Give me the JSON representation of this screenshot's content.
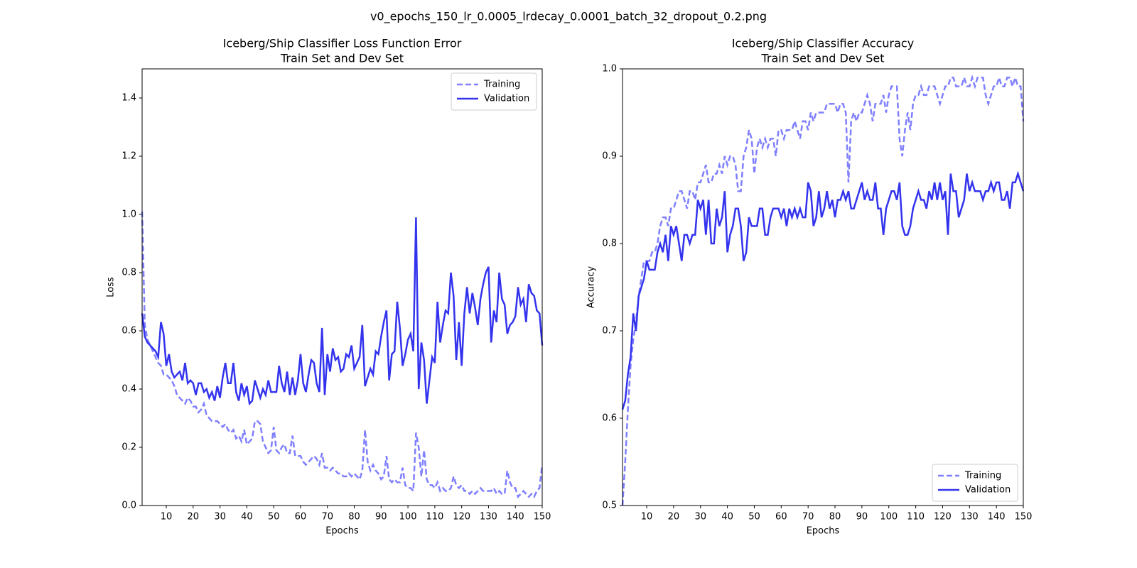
{
  "title": "v0_epochs_150_lr_0.0005_lrdecay_0.0001_batch_32_dropout_0.2.png",
  "chart_data": [
    {
      "type": "line",
      "title": [
        "Iceberg/Ship Classifier Loss Function Error",
        "Train Set and Dev Set"
      ],
      "xlabel": "Epochs",
      "ylabel": "Loss",
      "legend": "upper right",
      "xlim": [
        1,
        150
      ],
      "xticks": [
        10,
        20,
        30,
        40,
        50,
        60,
        70,
        80,
        90,
        100,
        110,
        120,
        130,
        140,
        150
      ],
      "ylim": [
        0,
        1.5
      ],
      "yticks": [
        {
          "value": 0,
          "label": "0.0"
        },
        0.2,
        0.4,
        0.6,
        0.8,
        {
          "value": 1,
          "label": "1.0"
        },
        1.2,
        1.4
      ],
      "x": [
        1,
        2,
        3,
        4,
        5,
        6,
        7,
        8,
        9,
        10,
        11,
        12,
        13,
        14,
        15,
        16,
        17,
        18,
        19,
        20,
        21,
        22,
        23,
        24,
        25,
        26,
        27,
        28,
        29,
        30,
        31,
        32,
        33,
        34,
        35,
        36,
        37,
        38,
        39,
        40,
        41,
        42,
        43,
        44,
        45,
        46,
        47,
        48,
        49,
        50,
        51,
        52,
        53,
        54,
        55,
        56,
        57,
        58,
        59,
        60,
        61,
        62,
        63,
        64,
        65,
        66,
        67,
        68,
        69,
        70,
        71,
        72,
        73,
        74,
        75,
        76,
        77,
        78,
        79,
        80,
        81,
        82,
        83,
        84,
        85,
        86,
        87,
        88,
        89,
        90,
        91,
        92,
        93,
        94,
        95,
        96,
        97,
        98,
        99,
        100,
        101,
        102,
        103,
        104,
        105,
        106,
        107,
        108,
        109,
        110,
        111,
        112,
        113,
        114,
        115,
        116,
        117,
        118,
        119,
        120,
        121,
        122,
        123,
        124,
        125,
        126,
        127,
        128,
        129,
        130,
        131,
        132,
        133,
        134,
        135,
        136,
        137,
        138,
        139,
        140,
        141,
        142,
        143,
        144,
        145,
        146,
        147,
        148,
        149,
        150
      ],
      "series": [
        {
          "name": "Training",
          "color": "#7f7fff",
          "style": "dashed",
          "values": [
            1.01,
            0.62,
            0.57,
            0.55,
            0.53,
            0.51,
            0.49,
            0.48,
            0.45,
            0.45,
            0.44,
            0.43,
            0.41,
            0.38,
            0.37,
            0.36,
            0.35,
            0.37,
            0.36,
            0.34,
            0.34,
            0.32,
            0.33,
            0.35,
            0.31,
            0.3,
            0.29,
            0.29,
            0.29,
            0.28,
            0.27,
            0.28,
            0.26,
            0.25,
            0.26,
            0.23,
            0.24,
            0.22,
            0.26,
            0.21,
            0.22,
            0.23,
            0.29,
            0.29,
            0.28,
            0.22,
            0.2,
            0.18,
            0.19,
            0.27,
            0.19,
            0.18,
            0.2,
            0.21,
            0.18,
            0.18,
            0.24,
            0.17,
            0.17,
            0.17,
            0.15,
            0.14,
            0.15,
            0.16,
            0.17,
            0.16,
            0.14,
            0.18,
            0.13,
            0.13,
            0.12,
            0.13,
            0.12,
            0.11,
            0.11,
            0.1,
            0.1,
            0.11,
            0.1,
            0.11,
            0.1,
            0.09,
            0.12,
            0.26,
            0.15,
            0.12,
            0.14,
            0.12,
            0.11,
            0.09,
            0.1,
            0.17,
            0.09,
            0.08,
            0.09,
            0.08,
            0.08,
            0.13,
            0.07,
            0.06,
            0.06,
            0.05,
            0.25,
            0.2,
            0.1,
            0.19,
            0.09,
            0.07,
            0.07,
            0.06,
            0.08,
            0.05,
            0.06,
            0.05,
            0.05,
            0.06,
            0.1,
            0.07,
            0.06,
            0.07,
            0.05,
            0.05,
            0.04,
            0.05,
            0.04,
            0.05,
            0.06,
            0.05,
            0.05,
            0.05,
            0.05,
            0.06,
            0.04,
            0.05,
            0.04,
            0.04,
            0.12,
            0.08,
            0.06,
            0.06,
            0.03,
            0.04,
            0.05,
            0.04,
            0.03,
            0.04,
            0.03,
            0.05,
            0.06,
            0.14
          ]
        },
        {
          "name": "Validation",
          "color": "#3333ee",
          "style": "solid",
          "values": [
            0.66,
            0.58,
            0.56,
            0.55,
            0.54,
            0.53,
            0.51,
            0.63,
            0.59,
            0.48,
            0.52,
            0.46,
            0.44,
            0.45,
            0.46,
            0.43,
            0.49,
            0.42,
            0.43,
            0.42,
            0.38,
            0.42,
            0.42,
            0.39,
            0.4,
            0.37,
            0.39,
            0.36,
            0.41,
            0.37,
            0.44,
            0.49,
            0.42,
            0.42,
            0.49,
            0.39,
            0.36,
            0.42,
            0.38,
            0.41,
            0.35,
            0.36,
            0.43,
            0.4,
            0.37,
            0.4,
            0.38,
            0.43,
            0.39,
            0.39,
            0.39,
            0.48,
            0.42,
            0.39,
            0.46,
            0.38,
            0.44,
            0.38,
            0.43,
            0.52,
            0.42,
            0.39,
            0.45,
            0.5,
            0.49,
            0.42,
            0.39,
            0.61,
            0.38,
            0.52,
            0.46,
            0.54,
            0.5,
            0.51,
            0.46,
            0.47,
            0.52,
            0.51,
            0.55,
            0.47,
            0.49,
            0.51,
            0.62,
            0.41,
            0.44,
            0.47,
            0.45,
            0.53,
            0.52,
            0.58,
            0.63,
            0.67,
            0.43,
            0.52,
            0.53,
            0.7,
            0.61,
            0.48,
            0.52,
            0.57,
            0.59,
            0.53,
            0.99,
            0.4,
            0.56,
            0.5,
            0.35,
            0.43,
            0.51,
            0.49,
            0.7,
            0.56,
            0.62,
            0.67,
            0.66,
            0.8,
            0.72,
            0.5,
            0.63,
            0.48,
            0.66,
            0.75,
            0.66,
            0.73,
            0.68,
            0.62,
            0.71,
            0.76,
            0.8,
            0.82,
            0.56,
            0.67,
            0.63,
            0.8,
            0.71,
            0.69,
            0.59,
            0.62,
            0.63,
            0.65,
            0.75,
            0.69,
            0.71,
            0.63,
            0.76,
            0.73,
            0.72,
            0.67,
            0.66,
            0.55
          ]
        }
      ]
    },
    {
      "type": "line",
      "title": [
        "Iceberg/Ship Classifier Accuracy",
        "Train Set and Dev Set"
      ],
      "xlabel": "Epochs",
      "ylabel": "Accuracy",
      "legend": "lower right",
      "xlim": [
        1,
        150
      ],
      "xticks": [
        10,
        20,
        30,
        40,
        50,
        60,
        70,
        80,
        90,
        100,
        110,
        120,
        130,
        140,
        150
      ],
      "ylim": [
        0.5,
        1.0
      ],
      "yticks": [
        0.5,
        0.6,
        0.7,
        0.8,
        0.9,
        {
          "value": 1,
          "label": "1.0"
        }
      ],
      "x": [
        1,
        2,
        3,
        4,
        5,
        6,
        7,
        8,
        9,
        10,
        11,
        12,
        13,
        14,
        15,
        16,
        17,
        18,
        19,
        20,
        21,
        22,
        23,
        24,
        25,
        26,
        27,
        28,
        29,
        30,
        31,
        32,
        33,
        34,
        35,
        36,
        37,
        38,
        39,
        40,
        41,
        42,
        43,
        44,
        45,
        46,
        47,
        48,
        49,
        50,
        51,
        52,
        53,
        54,
        55,
        56,
        57,
        58,
        59,
        60,
        61,
        62,
        63,
        64,
        65,
        66,
        67,
        68,
        69,
        70,
        71,
        72,
        73,
        74,
        75,
        76,
        77,
        78,
        79,
        80,
        81,
        82,
        83,
        84,
        85,
        86,
        87,
        88,
        89,
        90,
        91,
        92,
        93,
        94,
        95,
        96,
        97,
        98,
        99,
        100,
        101,
        102,
        103,
        104,
        105,
        106,
        107,
        108,
        109,
        110,
        111,
        112,
        113,
        114,
        115,
        116,
        117,
        118,
        119,
        120,
        121,
        122,
        123,
        124,
        125,
        126,
        127,
        128,
        129,
        130,
        131,
        132,
        133,
        134,
        135,
        136,
        137,
        138,
        139,
        140,
        141,
        142,
        143,
        144,
        145,
        146,
        147,
        148,
        149,
        150
      ],
      "series": [
        {
          "name": "Training",
          "color": "#7f7fff",
          "style": "dashed",
          "values": [
            0.5,
            0.55,
            0.61,
            0.66,
            0.69,
            0.71,
            0.74,
            0.76,
            0.78,
            0.78,
            0.78,
            0.79,
            0.79,
            0.8,
            0.82,
            0.83,
            0.83,
            0.82,
            0.84,
            0.84,
            0.85,
            0.86,
            0.86,
            0.85,
            0.84,
            0.86,
            0.86,
            0.85,
            0.87,
            0.87,
            0.88,
            0.89,
            0.87,
            0.87,
            0.88,
            0.88,
            0.89,
            0.88,
            0.9,
            0.89,
            0.9,
            0.9,
            0.89,
            0.86,
            0.86,
            0.9,
            0.91,
            0.93,
            0.92,
            0.88,
            0.91,
            0.92,
            0.91,
            0.92,
            0.91,
            0.92,
            0.92,
            0.9,
            0.93,
            0.93,
            0.92,
            0.93,
            0.93,
            0.93,
            0.94,
            0.93,
            0.92,
            0.94,
            0.94,
            0.93,
            0.95,
            0.94,
            0.95,
            0.95,
            0.95,
            0.95,
            0.96,
            0.96,
            0.96,
            0.96,
            0.95,
            0.96,
            0.96,
            0.95,
            0.87,
            0.94,
            0.95,
            0.94,
            0.95,
            0.95,
            0.96,
            0.97,
            0.96,
            0.94,
            0.96,
            0.96,
            0.96,
            0.97,
            0.95,
            0.97,
            0.98,
            0.98,
            0.98,
            0.92,
            0.9,
            0.93,
            0.95,
            0.93,
            0.96,
            0.97,
            0.97,
            0.98,
            0.97,
            0.97,
            0.98,
            0.98,
            0.98,
            0.97,
            0.96,
            0.97,
            0.98,
            0.98,
            0.99,
            0.99,
            0.98,
            0.98,
            0.98,
            0.99,
            0.98,
            0.98,
            0.99,
            0.98,
            0.99,
            0.99,
            0.99,
            0.97,
            0.96,
            0.97,
            0.98,
            0.98,
            0.99,
            0.98,
            0.98,
            0.99,
            0.99,
            0.98,
            0.99,
            0.98,
            0.98,
            0.94
          ]
        },
        {
          "name": "Validation",
          "color": "#3333ee",
          "style": "solid",
          "values": [
            0.61,
            0.62,
            0.65,
            0.67,
            0.72,
            0.7,
            0.74,
            0.75,
            0.76,
            0.78,
            0.77,
            0.77,
            0.77,
            0.79,
            0.8,
            0.79,
            0.81,
            0.78,
            0.82,
            0.81,
            0.82,
            0.8,
            0.78,
            0.81,
            0.81,
            0.8,
            0.81,
            0.81,
            0.85,
            0.84,
            0.85,
            0.81,
            0.85,
            0.8,
            0.8,
            0.84,
            0.82,
            0.83,
            0.86,
            0.79,
            0.81,
            0.82,
            0.84,
            0.84,
            0.82,
            0.78,
            0.79,
            0.83,
            0.82,
            0.82,
            0.82,
            0.84,
            0.84,
            0.81,
            0.81,
            0.83,
            0.84,
            0.84,
            0.84,
            0.83,
            0.84,
            0.82,
            0.84,
            0.83,
            0.84,
            0.83,
            0.84,
            0.83,
            0.83,
            0.87,
            0.86,
            0.82,
            0.83,
            0.86,
            0.83,
            0.84,
            0.86,
            0.84,
            0.85,
            0.83,
            0.85,
            0.85,
            0.86,
            0.85,
            0.86,
            0.84,
            0.84,
            0.85,
            0.86,
            0.87,
            0.85,
            0.86,
            0.85,
            0.85,
            0.87,
            0.84,
            0.84,
            0.81,
            0.84,
            0.85,
            0.86,
            0.86,
            0.85,
            0.87,
            0.82,
            0.81,
            0.81,
            0.82,
            0.84,
            0.85,
            0.86,
            0.85,
            0.85,
            0.84,
            0.86,
            0.85,
            0.87,
            0.85,
            0.87,
            0.85,
            0.86,
            0.81,
            0.88,
            0.86,
            0.86,
            0.83,
            0.84,
            0.85,
            0.88,
            0.86,
            0.87,
            0.86,
            0.86,
            0.86,
            0.85,
            0.86,
            0.86,
            0.87,
            0.86,
            0.87,
            0.87,
            0.85,
            0.85,
            0.86,
            0.84,
            0.87,
            0.87,
            0.88,
            0.87,
            0.86
          ]
        }
      ]
    }
  ]
}
